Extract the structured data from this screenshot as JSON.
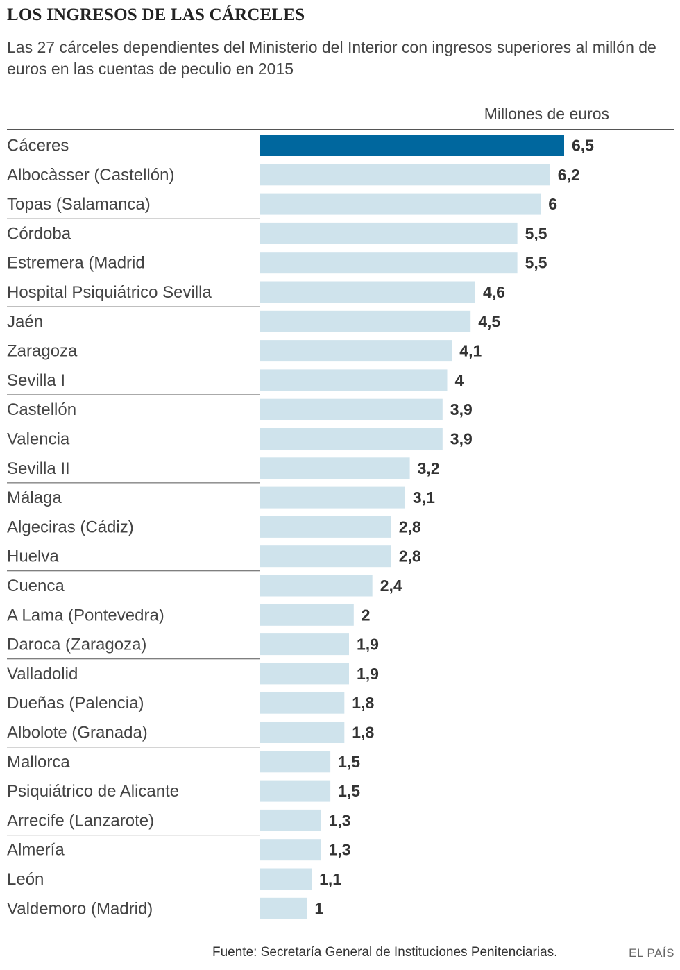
{
  "header": {
    "title": "LOS INGRESOS DE LAS CÁRCELES",
    "subtitle": "Las 27 cárceles dependientes del Ministerio del Interior con ingresos superiores al millón de euros en las cuentas de peculio en 2015"
  },
  "footer": {
    "source": "Fuente: Secretaría General de Instituciones Penitenciarias.",
    "brand": "EL PAÍS"
  },
  "colors": {
    "highlight": "#00679e",
    "bar": "#cfe3ec",
    "label": "#444444",
    "value": "#333333",
    "separator": "#555555"
  },
  "chart_data": {
    "type": "bar",
    "orientation": "horizontal",
    "unit_label": "Millones de euros",
    "xlim": [
      0,
      6.5
    ],
    "categories": [
      "Cáceres",
      "Albocàsser (Castellón)",
      "Topas (Salamanca)",
      "Córdoba",
      "Estremera (Madrid",
      "Hospital Psiquiátrico Sevilla",
      "Jaén",
      "Zaragoza",
      "Sevilla I",
      "Castellón",
      "Valencia",
      "Sevilla II",
      "Málaga",
      "Algeciras (Cádiz)",
      "Huelva",
      "Cuenca",
      "A Lama (Pontevedra)",
      "Daroca (Zaragoza)",
      "Valladolid",
      "Dueñas (Palencia)",
      "Albolote (Granada)",
      "Mallorca",
      "Psiquiátrico de Alicante",
      "Arrecife (Lanzarote)",
      "Almería",
      "León",
      "Valdemoro (Madrid)"
    ],
    "values": [
      6.5,
      6.2,
      6,
      5.5,
      5.5,
      4.6,
      4.5,
      4.1,
      4,
      3.9,
      3.9,
      3.2,
      3.1,
      2.8,
      2.8,
      2.4,
      2,
      1.9,
      1.9,
      1.8,
      1.8,
      1.5,
      1.5,
      1.3,
      1.3,
      1.1,
      1
    ],
    "value_labels": [
      "6,5",
      "6,2",
      "6",
      "5,5",
      "5,5",
      "4,6",
      "4,5",
      "4,1",
      "4",
      "3,9",
      "3,9",
      "3,2",
      "3,1",
      "2,8",
      "2,8",
      "2,4",
      "2",
      "1,9",
      "1,9",
      "1,8",
      "1,8",
      "1,5",
      "1,5",
      "1,3",
      "1,3",
      "1,1",
      "1"
    ],
    "highlighted": [
      "Cáceres"
    ],
    "legend": "none",
    "grid": false
  }
}
